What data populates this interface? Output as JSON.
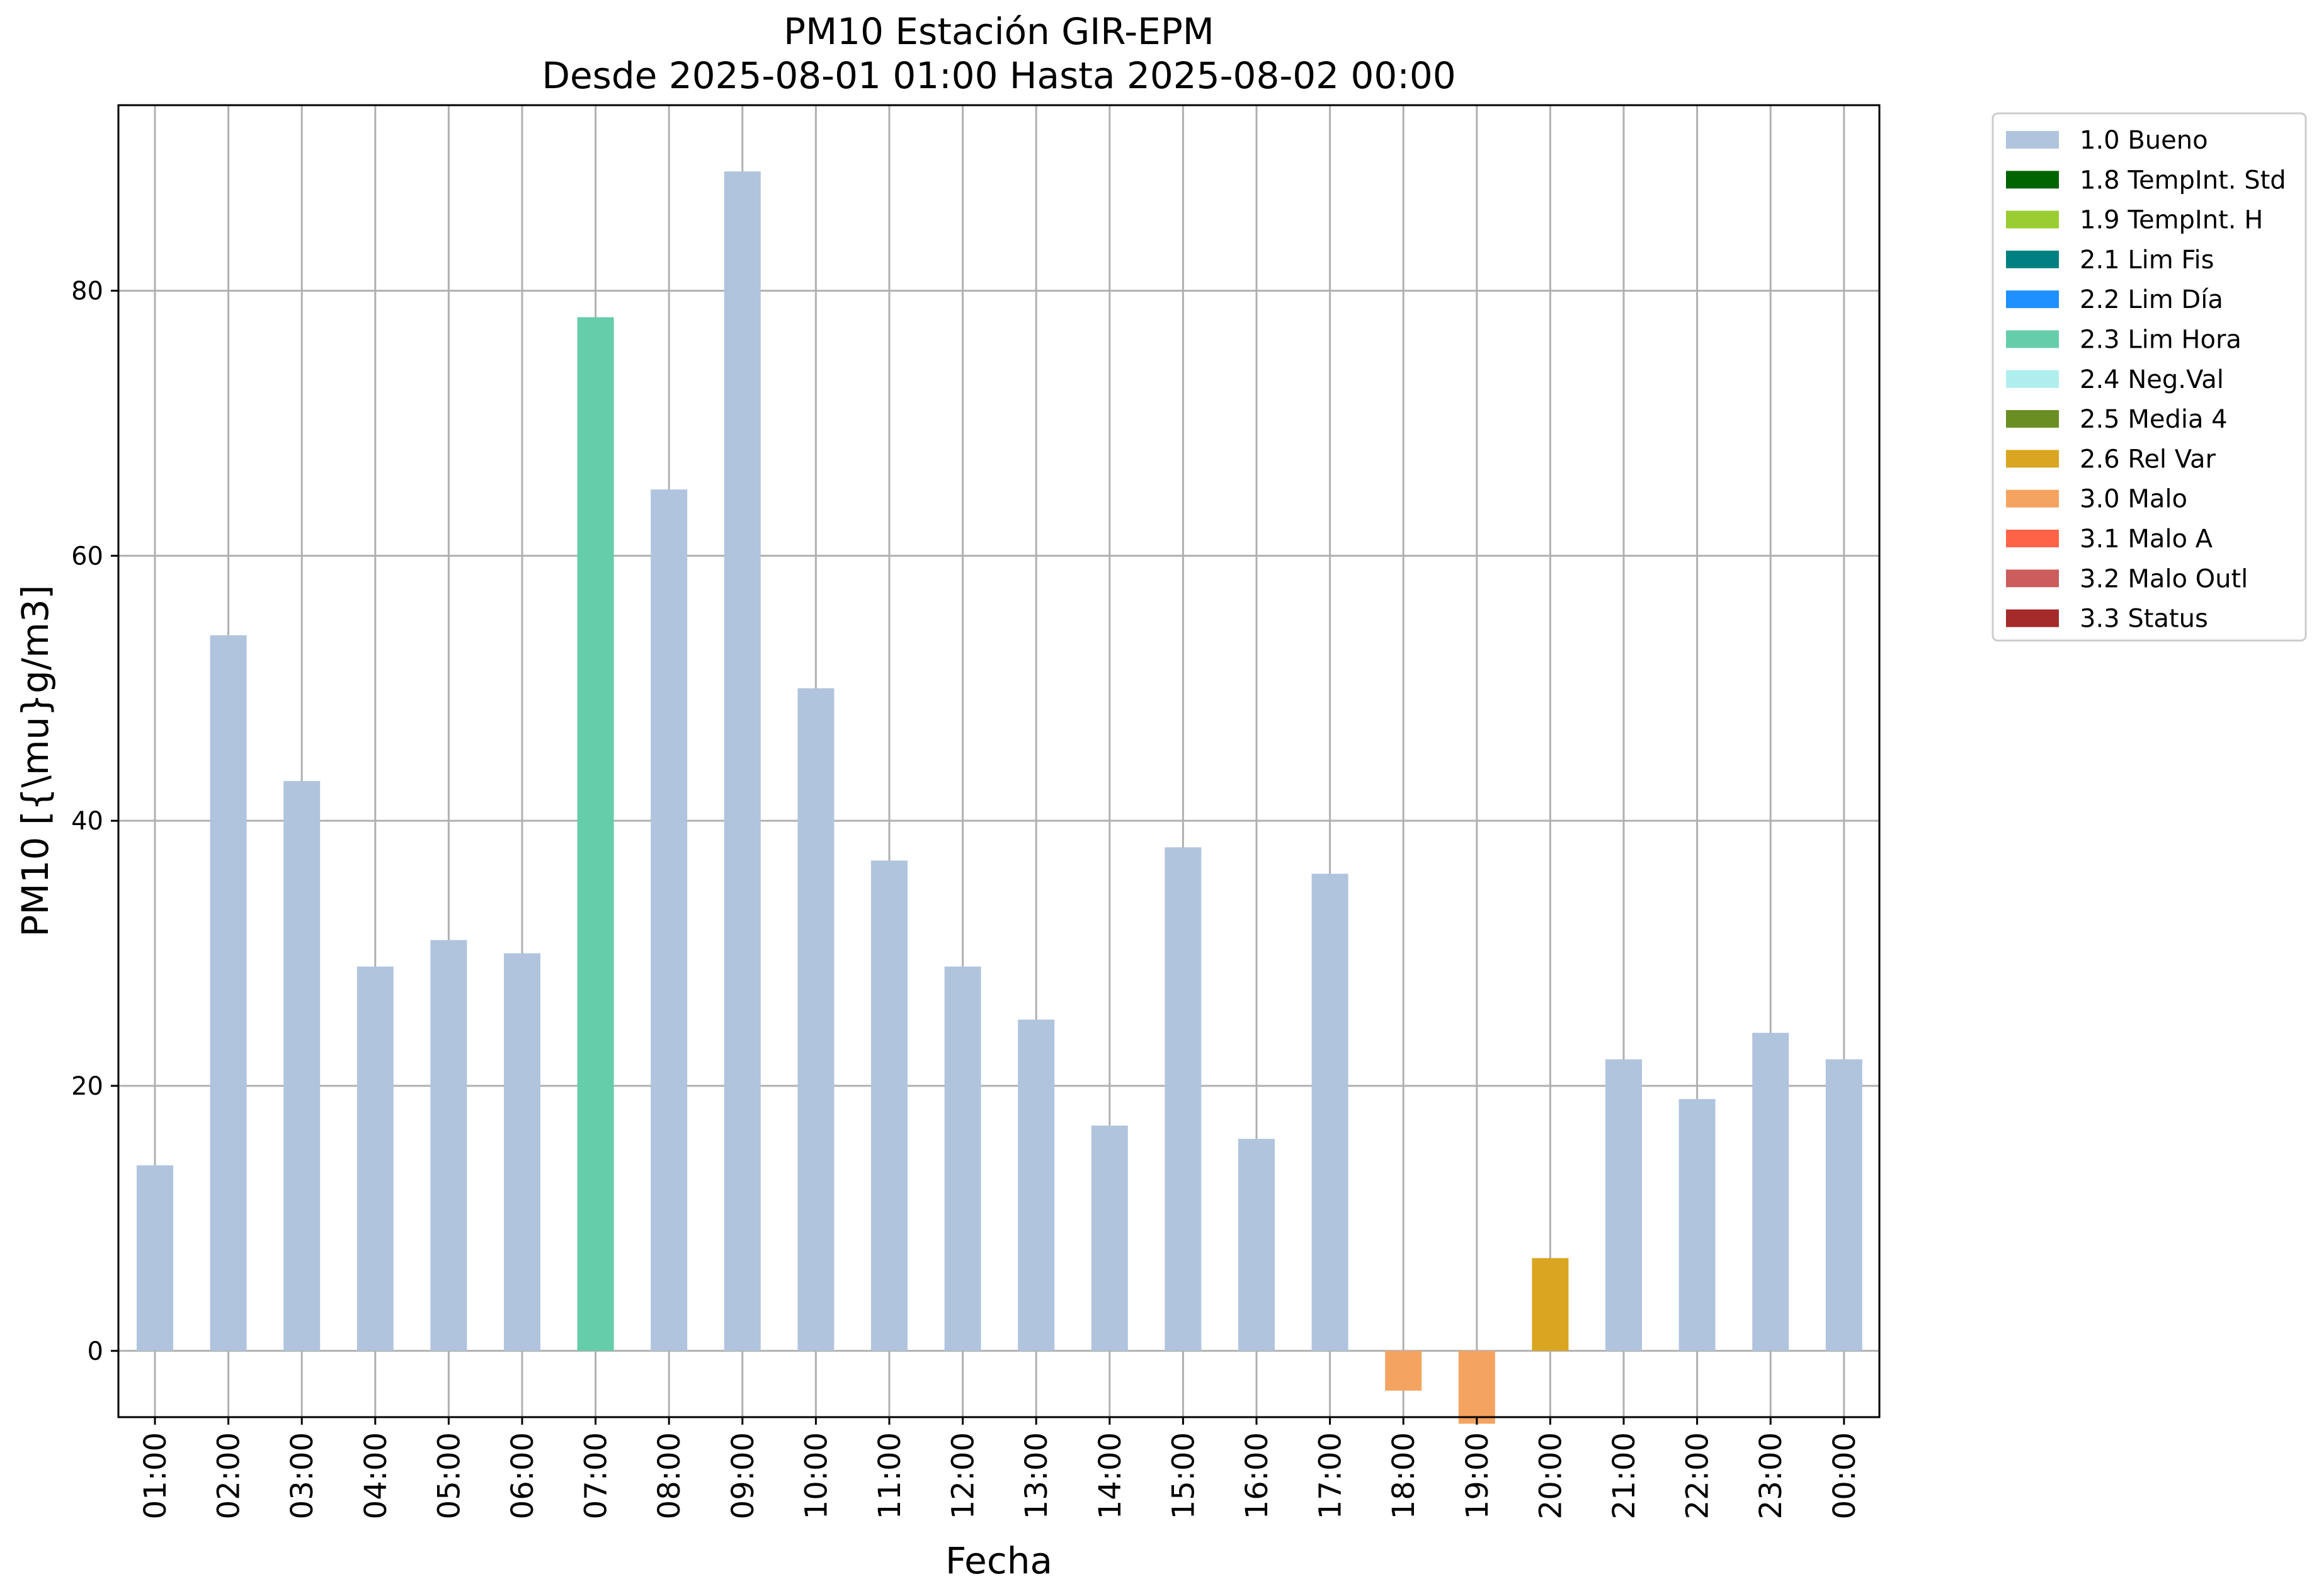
{
  "chart_data": {
    "type": "bar",
    "title_line1": "PM10 Estación GIR-EPM",
    "title_line2": "Desde 2025-08-01 01:00 Hasta 2025-08-02 00:00",
    "xlabel": "Fecha",
    "ylabel": "PM10 [{\\mu}g/m3]",
    "ylim": [
      -5,
      94
    ],
    "yticks": [
      0,
      20,
      40,
      60,
      80
    ],
    "grid": true,
    "legend_position": "outside-top-right",
    "categories": [
      "01:00",
      "02:00",
      "03:00",
      "04:00",
      "05:00",
      "06:00",
      "07:00",
      "08:00",
      "09:00",
      "10:00",
      "11:00",
      "12:00",
      "13:00",
      "14:00",
      "15:00",
      "16:00",
      "17:00",
      "18:00",
      "19:00",
      "20:00",
      "21:00",
      "22:00",
      "23:00",
      "00:00"
    ],
    "values": [
      14,
      54,
      43,
      29,
      31,
      30,
      78,
      65,
      89,
      50,
      37,
      29,
      25,
      17,
      38,
      16,
      36,
      -3,
      -5.5,
      7,
      22,
      19,
      24,
      22
    ],
    "flags": [
      "1.0 Bueno",
      "1.0 Bueno",
      "1.0 Bueno",
      "1.0 Bueno",
      "1.0 Bueno",
      "1.0 Bueno",
      "2.3 Lim Hora",
      "1.0 Bueno",
      "1.0 Bueno",
      "1.0 Bueno",
      "1.0 Bueno",
      "1.0 Bueno",
      "1.0 Bueno",
      "1.0 Bueno",
      "1.0 Bueno",
      "1.0 Bueno",
      "1.0 Bueno",
      "3.0 Malo",
      "3.0 Malo",
      "2.6 Rel Var",
      "1.0 Bueno",
      "1.0 Bueno",
      "1.0 Bueno",
      "1.0 Bueno"
    ],
    "legend": [
      {
        "label": "1.0 Bueno",
        "color": "#b0c4de"
      },
      {
        "label": "1.8 TempInt. Std",
        "color": "#006400"
      },
      {
        "label": "1.9 TempInt. H",
        "color": "#9acd32"
      },
      {
        "label": "2.1 Lim Fis",
        "color": "#008080"
      },
      {
        "label": "2.2 Lim Día",
        "color": "#1e90ff"
      },
      {
        "label": "2.3 Lim Hora",
        "color": "#66cdaa"
      },
      {
        "label": "2.4 Neg.Val",
        "color": "#afeeee"
      },
      {
        "label": "2.5 Media 4",
        "color": "#6b8e23"
      },
      {
        "label": "2.6 Rel Var",
        "color": "#daa520"
      },
      {
        "label": "3.0 Malo",
        "color": "#f4a460"
      },
      {
        "label": "3.1 Malo A",
        "color": "#ff6347"
      },
      {
        "label": "3.2 Malo Outl",
        "color": "#cd5c5c"
      },
      {
        "label": "3.3 Status",
        "color": "#a52a2a"
      }
    ]
  }
}
